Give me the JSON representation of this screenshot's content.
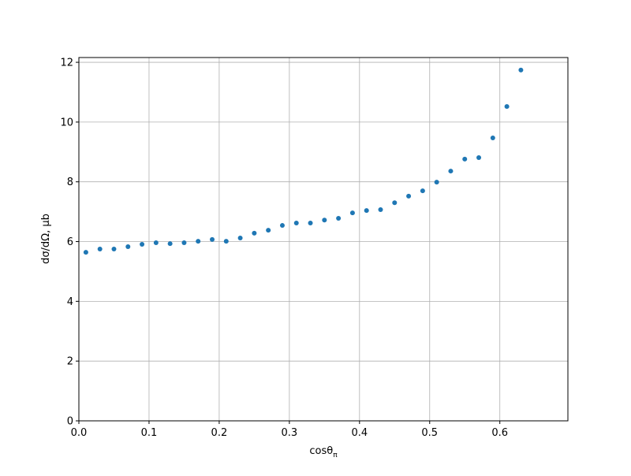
{
  "chart_data": {
    "type": "scatter",
    "xlabel": "cosθ",
    "xlabel_subscript": "π",
    "ylabel": "dσ/dΩ, μb",
    "x": [
      0.01,
      0.03,
      0.05,
      0.07,
      0.09,
      0.11,
      0.13,
      0.15,
      0.17,
      0.19,
      0.21,
      0.23,
      0.25,
      0.27,
      0.29,
      0.31,
      0.33,
      0.35,
      0.37,
      0.39,
      0.41,
      0.43,
      0.45,
      0.47,
      0.49,
      0.51,
      0.53,
      0.55,
      0.57,
      0.59,
      0.61,
      0.63
    ],
    "series": [
      {
        "color": "#1f77b4",
        "values": [
          5.64,
          5.75,
          5.75,
          5.83,
          5.91,
          5.96,
          5.93,
          5.96,
          6.01,
          6.07,
          6.01,
          6.12,
          6.28,
          6.38,
          6.54,
          6.62,
          6.62,
          6.72,
          6.78,
          6.96,
          7.04,
          7.07,
          7.3,
          7.52,
          7.7,
          7.99,
          8.36,
          8.76,
          8.81,
          9.47,
          10.52,
          11.74
        ]
      }
    ],
    "xlim": [
      0,
      0.697
    ],
    "xticks": [
      {
        "value": 0,
        "label": "0.0"
      },
      0.1,
      0.2,
      0.3,
      0.4,
      0.5,
      0.6
    ],
    "ylim": [
      0,
      12.16
    ],
    "yticks": [
      0,
      2,
      4,
      6,
      8,
      10,
      12
    ],
    "grid": true
  }
}
